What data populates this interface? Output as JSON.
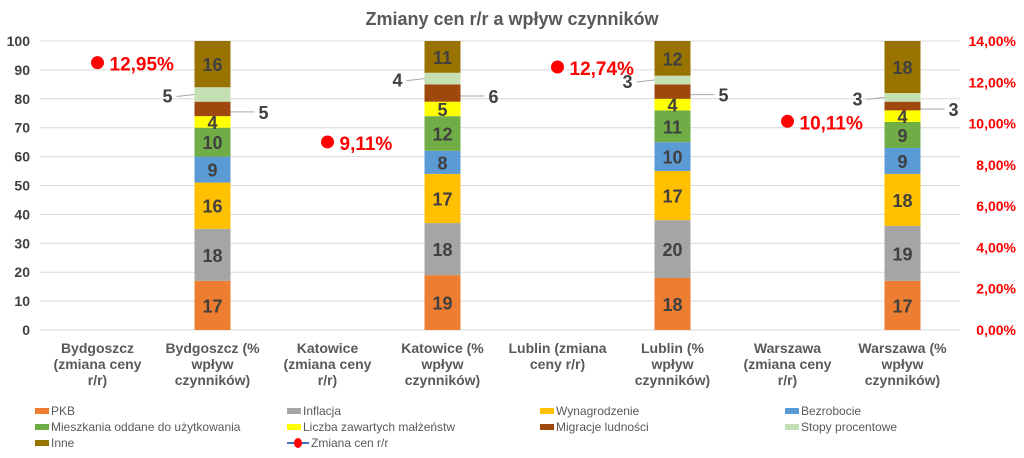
{
  "chart_data": {
    "type": "bar",
    "stacked": true,
    "title": "Zmiany cen r/r a wpływ czynników",
    "categories": [
      "Bydgoszcz (zmiana ceny r/r)",
      "Bydgoszcz (% wpływ czynników)",
      "Katowice (zmiana ceny r/r)",
      "Katowice (% wpływ czynników)",
      "Lublin (zmiana ceny r/r)",
      "Lublin (% wpływ czynników)",
      "Warszawa (zmiana ceny r/r)",
      "Warszawa (% wpływ czynników)"
    ],
    "category_lines": [
      [
        "Bydgoszcz",
        "(zmiana ceny",
        "r/r)"
      ],
      [
        "Bydgoszcz (%",
        "wpływ",
        "czynników)"
      ],
      [
        "Katowice",
        "(zmiana ceny",
        "r/r)"
      ],
      [
        "Katowice (%",
        "wpływ",
        "czynników)"
      ],
      [
        "Lublin (zmiana",
        "ceny r/r)"
      ],
      [
        "Lublin (%",
        "wpływ",
        "czynników)"
      ],
      [
        "Warszawa",
        "(zmiana ceny",
        "r/r)"
      ],
      [
        "Warszawa (%",
        "wpływ",
        "czynników)"
      ]
    ],
    "left_axis": {
      "ylim": [
        0,
        100
      ],
      "ticks": [
        "0",
        "10",
        "20",
        "30",
        "40",
        "50",
        "60",
        "70",
        "80",
        "90",
        "100"
      ]
    },
    "right_axis": {
      "ylim": [
        0,
        14
      ],
      "ticks": [
        "0,00%",
        "2,00%",
        "4,00%",
        "6,00%",
        "8,00%",
        "10,00%",
        "12,00%",
        "14,00%"
      ],
      "color": "#ff0000"
    },
    "grid": true,
    "legend_position": "bottom",
    "series": [
      {
        "name": "PKB",
        "color": "#ed7d31",
        "values": [
          null,
          17,
          null,
          19,
          null,
          18,
          null,
          17
        ]
      },
      {
        "name": "Inflacja",
        "color": "#a5a5a5",
        "values": [
          null,
          18,
          null,
          18,
          null,
          20,
          null,
          19
        ]
      },
      {
        "name": "Wynagrodzenie",
        "color": "#ffc000",
        "values": [
          null,
          16,
          null,
          17,
          null,
          17,
          null,
          18
        ]
      },
      {
        "name": "Bezrobocie",
        "color": "#5b9bd5",
        "values": [
          null,
          9,
          null,
          8,
          null,
          10,
          null,
          9
        ]
      },
      {
        "name": "Mieszkania oddane do użytkowania",
        "color": "#70ad47",
        "values": [
          null,
          10,
          null,
          12,
          null,
          11,
          null,
          9
        ]
      },
      {
        "name": "Liczba zawartych małżeństw",
        "color": "#ffff00",
        "values": [
          null,
          4,
          null,
          5,
          null,
          4,
          null,
          4
        ]
      },
      {
        "name": "Migracje ludności",
        "color": "#9e480e",
        "values": [
          null,
          5,
          null,
          6,
          null,
          5,
          null,
          3
        ]
      },
      {
        "name": "Stopy procentowe",
        "color": "#c5e0b4",
        "values": [
          null,
          5,
          null,
          4,
          null,
          3,
          null,
          3
        ]
      },
      {
        "name": "Inne",
        "color": "#997300",
        "values": [
          null,
          16,
          null,
          11,
          null,
          12,
          null,
          18
        ]
      }
    ],
    "line_series": {
      "name": "Zmiana cen r/r",
      "axis": "right",
      "color": "#ff0000",
      "values": [
        12.95,
        null,
        9.11,
        null,
        12.74,
        null,
        10.11,
        null
      ],
      "labels": [
        "12,95%",
        null,
        "9,11%",
        null,
        "12,74%",
        null,
        "10,11%",
        null
      ]
    }
  }
}
